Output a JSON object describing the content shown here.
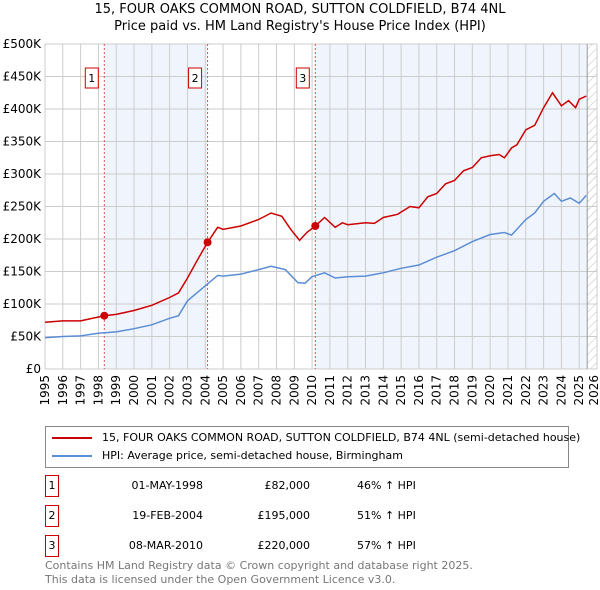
{
  "chart_data": {
    "type": "line",
    "title": "15, FOUR OAKS COMMON ROAD, SUTTON COLDFIELD, B74 4NL",
    "subtitle": "Price paid vs. HM Land Registry's House Price Index (HPI)",
    "xlim": [
      1995,
      2026
    ],
    "ylim": [
      0,
      500000
    ],
    "x_ticks": [
      "1995",
      "1996",
      "1997",
      "1998",
      "1999",
      "2000",
      "2001",
      "2002",
      "2003",
      "2004",
      "2005",
      "2006",
      "2007",
      "2008",
      "2009",
      "2010",
      "2011",
      "2012",
      "2013",
      "2014",
      "2015",
      "2016",
      "2017",
      "2018",
      "2019",
      "2020",
      "2021",
      "2022",
      "2023",
      "2024",
      "2025",
      "2026"
    ],
    "y_ticks": [
      {
        "v": 0,
        "l": "£0"
      },
      {
        "v": 50000,
        "l": "£50K"
      },
      {
        "v": 100000,
        "l": "£100K"
      },
      {
        "v": 150000,
        "l": "£150K"
      },
      {
        "v": 200000,
        "l": "£200K"
      },
      {
        "v": 250000,
        "l": "£250K"
      },
      {
        "v": 300000,
        "l": "£300K"
      },
      {
        "v": 350000,
        "l": "£350K"
      },
      {
        "v": 400000,
        "l": "£400K"
      },
      {
        "v": 450000,
        "l": "£450K"
      },
      {
        "v": 500000,
        "l": "£500K"
      }
    ],
    "grid": true,
    "series": [
      {
        "name": "15, FOUR OAKS COMMON ROAD, SUTTON COLDFIELD, B74 4NL (semi-detached house)",
        "color": "#cc0000",
        "x": [
          1995,
          1996,
          1997,
          1998,
          1998.33,
          1999,
          2000,
          2001,
          2002,
          2002.5,
          2003,
          2003.5,
          2004.13,
          2004.7,
          2005,
          2006,
          2007,
          2007.7,
          2008.3,
          2008.8,
          2009.3,
          2009.7,
          2010.18,
          2010.7,
          2011.3,
          2011.7,
          2012,
          2013,
          2013.5,
          2014,
          2014.8,
          2015.5,
          2016,
          2016.5,
          2017,
          2017.5,
          2018,
          2018.5,
          2019,
          2019.5,
          2020,
          2020.5,
          2020.8,
          2021.2,
          2021.5,
          2022,
          2022.5,
          2023,
          2023.5,
          2024,
          2024.4,
          2024.8,
          2025.0,
          2025.4
        ],
        "y": [
          72000,
          74000,
          74000,
          80000,
          82000,
          84000,
          90000,
          98000,
          110000,
          117000,
          140000,
          165000,
          195000,
          218000,
          215000,
          220000,
          230000,
          240000,
          235000,
          215000,
          198000,
          210000,
          220000,
          233000,
          218000,
          225000,
          222000,
          225000,
          224000,
          233000,
          238000,
          250000,
          248000,
          265000,
          270000,
          285000,
          290000,
          305000,
          310000,
          325000,
          328000,
          330000,
          325000,
          340000,
          345000,
          368000,
          375000,
          402000,
          425000,
          405000,
          413000,
          402000,
          415000,
          420000
        ]
      },
      {
        "name": "HPI: Average price, semi-detached house, Birmingham",
        "color": "#5b8ed6",
        "x": [
          1995,
          1996,
          1997,
          1998,
          1999,
          2000,
          2001,
          2002,
          2002.5,
          2003,
          2004,
          2004.7,
          2005,
          2006,
          2007,
          2007.7,
          2008.5,
          2009.2,
          2009.6,
          2010,
          2010.7,
          2011.3,
          2012,
          2013,
          2014,
          2015,
          2016,
          2017,
          2018,
          2019,
          2020,
          2020.8,
          2021.2,
          2021.5,
          2022,
          2022.5,
          2023,
          2023.6,
          2024,
          2024.5,
          2025,
          2025.4
        ],
        "y": [
          48000,
          50000,
          51000,
          55000,
          57000,
          62000,
          68000,
          78000,
          82000,
          105000,
          128000,
          144000,
          143000,
          146000,
          153000,
          158000,
          153000,
          133000,
          132000,
          142000,
          148000,
          140000,
          142000,
          143000,
          148000,
          155000,
          160000,
          172000,
          182000,
          196000,
          207000,
          210000,
          206000,
          215000,
          230000,
          240000,
          258000,
          270000,
          258000,
          263000,
          255000,
          267000
        ]
      }
    ],
    "sales": [
      {
        "label": "1",
        "x": 1998.33,
        "y": 82000
      },
      {
        "label": "2",
        "x": 2004.13,
        "y": 195000
      },
      {
        "label": "3",
        "x": 2010.18,
        "y": 220000
      }
    ],
    "forecast_start": 2025.45,
    "legend_position": "bottom"
  },
  "table": [
    {
      "num": "1",
      "date": "01-MAY-1998",
      "price": "£82,000",
      "hpi": "46% ↑ HPI"
    },
    {
      "num": "2",
      "date": "19-FEB-2004",
      "price": "£195,000",
      "hpi": "51% ↑ HPI"
    },
    {
      "num": "3",
      "date": "08-MAR-2010",
      "price": "£220,000",
      "hpi": "57% ↑ HPI"
    }
  ],
  "footer": {
    "line1": "Contains HM Land Registry data © Crown copyright and database right 2025.",
    "line2": "This data is licensed under the Open Government Licence v3.0."
  }
}
